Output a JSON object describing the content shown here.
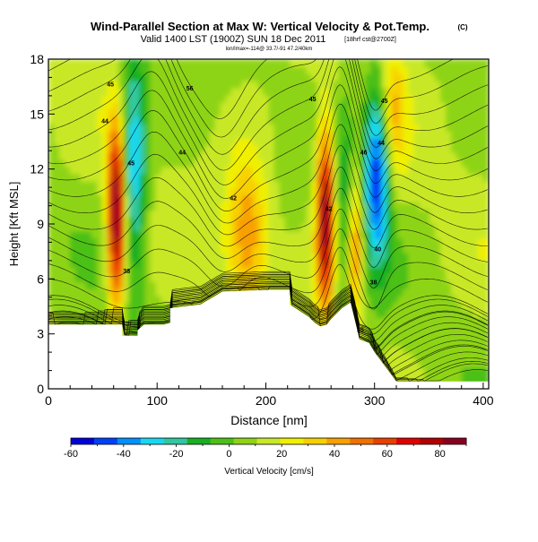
{
  "chart_data": {
    "type": "heatmap",
    "title": "Wind-Parallel Section at Max W: Vertical Velocity & Pot.Temp.",
    "title_unit": "(C)",
    "subtitle": "Valid 1400 LST (1900Z) SUN 18 Dec 2011",
    "subtitle_note": "[18hrf cst@2700Z]",
    "subsubtitle": "lon/lmax=-114@ 33.7/-91 47.2/40km",
    "xlabel": "Distance [nm]",
    "ylabel": "Height [Kft MSL]",
    "xlim": [
      0,
      405
    ],
    "ylim": [
      0,
      18
    ],
    "xticks": [
      0,
      100,
      200,
      300,
      400
    ],
    "yticks": [
      0,
      3,
      6,
      9,
      12,
      15,
      18
    ],
    "colorbar": {
      "label": "Vertical Velocity [cm/s]",
      "range": [
        -60,
        90
      ],
      "ticks": [
        -60,
        -40,
        -20,
        0,
        20,
        40,
        60,
        80
      ],
      "colors": [
        "#0000d8",
        "#0040f8",
        "#0090ff",
        "#18d8f0",
        "#30c8a0",
        "#18b020",
        "#4cc016",
        "#8ed414",
        "#c8e828",
        "#f0f000",
        "#f8d000",
        "#f8a000",
        "#f07000",
        "#e84000",
        "#e00000",
        "#b00000",
        "#880020"
      ]
    },
    "terrain_profile": {
      "distance_nm": [
        0,
        68,
        68,
        82,
        82,
        88,
        106,
        112,
        112,
        140,
        160,
        200,
        222,
        222,
        240,
        245,
        250,
        256,
        260,
        270,
        275,
        278,
        285,
        286,
        295,
        300,
        320,
        405
      ],
      "height_kft": [
        3.5,
        3.5,
        2.9,
        2.9,
        3.2,
        3.5,
        3.5,
        3.6,
        4.4,
        4.6,
        5.3,
        5.4,
        5.4,
        4.6,
        3.9,
        3.6,
        3.4,
        3.5,
        3.8,
        4.4,
        4.6,
        4.7,
        3.0,
        2.7,
        2.5,
        2.0,
        0.4,
        0.4
      ]
    },
    "velocity_features": [
      {
        "distance_nm": 63,
        "height_kft": 9.5,
        "value_cms": 90,
        "sigma_dist_nm": 6,
        "sigma_height_kft": 3.5
      },
      {
        "distance_nm": 78,
        "height_kft": 12.5,
        "value_cms": -45,
        "sigma_dist_nm": 9,
        "sigma_height_kft": 4.5
      },
      {
        "distance_nm": 183,
        "height_kft": 8.5,
        "value_cms": 35,
        "sigma_dist_nm": 14,
        "sigma_height_kft": 3.0
      },
      {
        "distance_nm": 255,
        "height_kft": 9.5,
        "value_cms": 80,
        "sigma_dist_nm": 6,
        "sigma_height_kft": 3.5
      },
      {
        "distance_nm": 274,
        "height_kft": 10,
        "value_cms": -25,
        "sigma_dist_nm": 8,
        "sigma_height_kft": 4.0
      },
      {
        "distance_nm": 282,
        "height_kft": 8,
        "value_cms": 50,
        "sigma_dist_nm": 5,
        "sigma_height_kft": 3.0
      },
      {
        "distance_nm": 303,
        "height_kft": 12,
        "value_cms": -65,
        "sigma_dist_nm": 9,
        "sigma_height_kft": 3.5
      },
      {
        "distance_nm": 316,
        "height_kft": 15,
        "value_cms": 30,
        "sigma_dist_nm": 8,
        "sigma_height_kft": 3.0
      }
    ],
    "isentrope_labels": [
      {
        "text": "45",
        "distance_nm": 57,
        "height_kft": 16.5
      },
      {
        "text": "44",
        "distance_nm": 52,
        "height_kft": 14.5
      },
      {
        "text": "56",
        "distance_nm": 130,
        "height_kft": 16.3
      },
      {
        "text": "45",
        "distance_nm": 76,
        "height_kft": 12.2
      },
      {
        "text": "44",
        "distance_nm": 123,
        "height_kft": 12.8
      },
      {
        "text": "42",
        "distance_nm": 170,
        "height_kft": 10.3
      },
      {
        "text": "38",
        "distance_nm": 72,
        "height_kft": 6.3
      },
      {
        "text": "45",
        "distance_nm": 243,
        "height_kft": 15.7
      },
      {
        "text": "42",
        "distance_nm": 258,
        "height_kft": 9.7
      },
      {
        "text": "45",
        "distance_nm": 309,
        "height_kft": 15.6
      },
      {
        "text": "44",
        "distance_nm": 306,
        "height_kft": 13.3
      },
      {
        "text": "46",
        "distance_nm": 290,
        "height_kft": 12.8
      },
      {
        "text": "40",
        "distance_nm": 303,
        "height_kft": 7.5
      },
      {
        "text": "38",
        "distance_nm": 299,
        "height_kft": 5.7
      },
      {
        "text": "35",
        "distance_nm": 287,
        "height_kft": 3.1
      }
    ]
  }
}
